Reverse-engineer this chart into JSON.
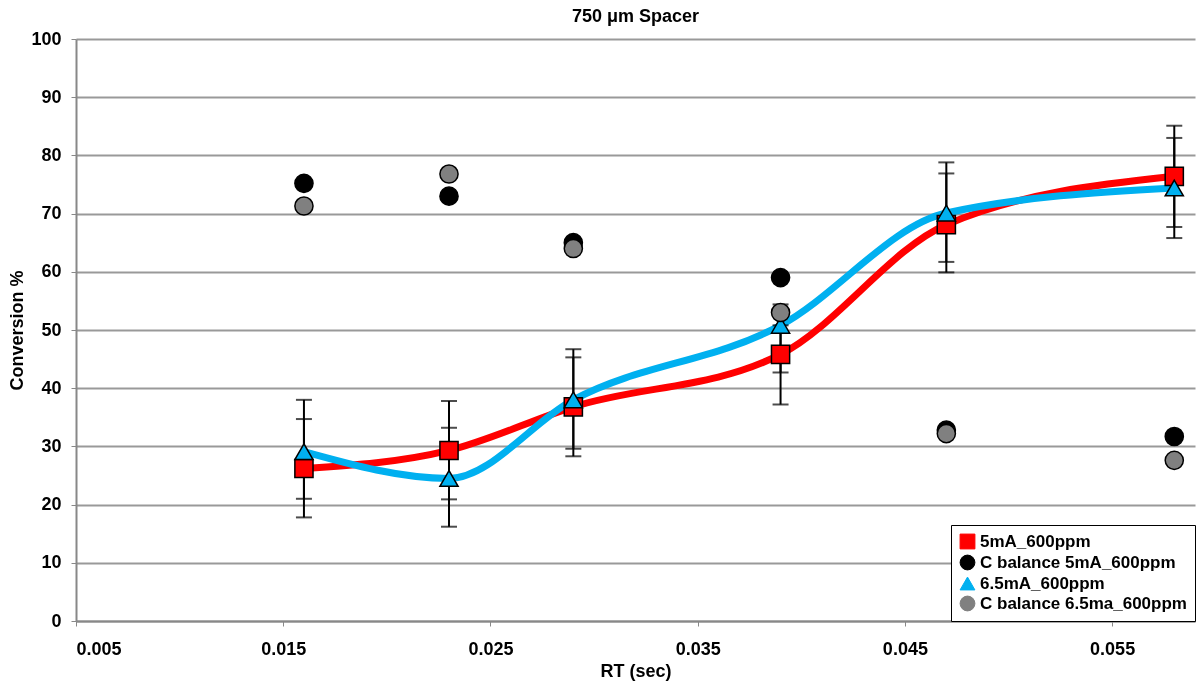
{
  "chart_data": {
    "type": "line",
    "title": "750 μm Spacer",
    "xlabel": "RT (sec)",
    "ylabel": "Conversion %",
    "x": [
      0.016,
      0.023,
      0.029,
      0.039,
      0.047,
      0.058
    ],
    "series": [
      {
        "name": "5mA_600ppm",
        "color": "#ff0000",
        "marker": "square",
        "values": [
          26.2,
          29.3,
          36.8,
          45.8,
          68.1,
          76.4
        ],
        "errors": [
          [
            21.0,
            34.7
          ],
          [
            20.9,
            33.2
          ],
          [
            28.3,
            45.3
          ],
          [
            37.2,
            54.4
          ],
          [
            59.9,
            76.9
          ],
          [
            67.7,
            85.1
          ]
        ]
      },
      {
        "name": "C balance 5mA_600ppm",
        "type": "scatter",
        "color": "#000000",
        "marker": "circle",
        "values": [
          75.2,
          73.0,
          65.0,
          59.0,
          32.8,
          31.7
        ]
      },
      {
        "name": "6.5mA_600ppm",
        "color": "#00b0f0",
        "marker": "triangle",
        "values": [
          29.1,
          24.5,
          38.0,
          50.8,
          70.1,
          74.4
        ],
        "errors": [
          [
            17.8,
            38.0
          ],
          [
            16.2,
            37.8
          ],
          [
            29.6,
            46.7
          ],
          [
            42.7,
            50.8
          ],
          [
            61.7,
            78.8
          ],
          [
            65.8,
            83.0
          ]
        ]
      },
      {
        "name": "C balance 6.5ma_600ppm",
        "type": "scatter",
        "color": "#808080",
        "marker": "circle",
        "values": [
          71.3,
          76.8,
          64.0,
          53.0,
          32.2,
          27.6
        ]
      }
    ],
    "xlim": [
      0.005,
      0.059
    ],
    "xticks": [
      0.005,
      0.015,
      0.025,
      0.035,
      0.045,
      0.055
    ],
    "ylim": [
      0,
      100
    ],
    "yticks": [
      0,
      10,
      20,
      30,
      40,
      50,
      60,
      70,
      80,
      90,
      100
    ],
    "grid": "y",
    "legend": "bottom right",
    "line_style": "solid"
  }
}
